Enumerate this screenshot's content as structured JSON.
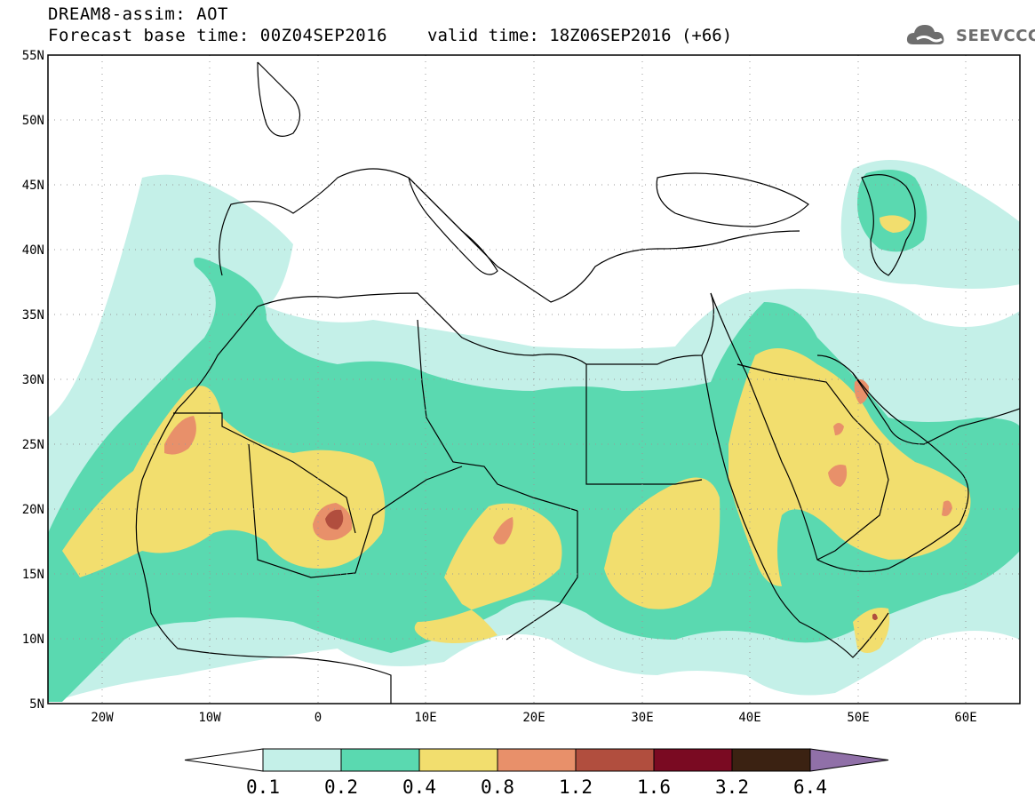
{
  "header": {
    "title": "DREAM8-assim: AOT",
    "base_time": "Forecast base time: 00Z04SEP2016",
    "valid_time": "valid time: 18Z06SEP2016 (+66)",
    "logo_text": "SEEVCCC"
  },
  "map": {
    "lon_range": [
      -25,
      65
    ],
    "lat_range": [
      5,
      55
    ],
    "lat_ticks": [
      "55N",
      "50N",
      "45N",
      "40N",
      "35N",
      "30N",
      "25N",
      "20N",
      "15N",
      "10N",
      "5N"
    ],
    "lon_ticks": [
      "20W",
      "10W",
      "0",
      "10E",
      "20E",
      "30E",
      "40E",
      "50E",
      "60E"
    ],
    "gridlines": "dotted"
  },
  "legend": {
    "levels": [
      "0.1",
      "0.2",
      "0.4",
      "0.8",
      "1.2",
      "1.6",
      "3.2",
      "6.4"
    ],
    "colors": [
      "#ffffff",
      "#c4f0e8",
      "#5ad9b0",
      "#f2de6e",
      "#e8906a",
      "#b14e3e",
      "#7a0a22",
      "#3b2212",
      "#9070a8"
    ]
  }
}
